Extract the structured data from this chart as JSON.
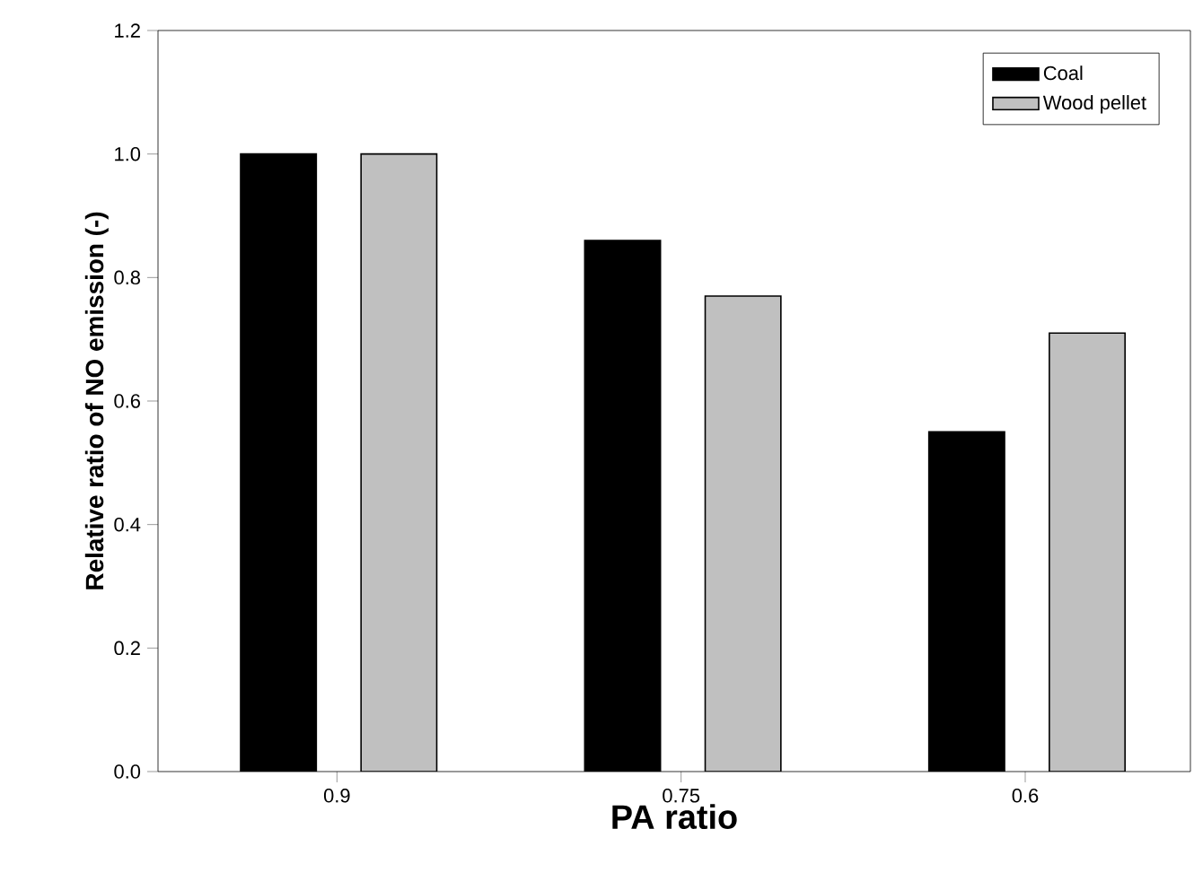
{
  "chart_data": {
    "type": "bar",
    "xlabel": "PA ratio",
    "ylabel": "Relative ratio of NO emission (-)",
    "categories": [
      "0.9",
      "0.75",
      "0.6"
    ],
    "series": [
      {
        "name": "Coal",
        "color": "#000000",
        "values": [
          1.0,
          0.86,
          0.55
        ]
      },
      {
        "name": "Wood pellet",
        "color": "#c0c0c0",
        "values": [
          1.0,
          0.77,
          0.71
        ]
      }
    ],
    "ylim": [
      0,
      1.2
    ],
    "yticks": [
      {
        "value": 0,
        "label": "0.0"
      },
      0.2,
      0.4,
      0.6,
      0.8,
      {
        "value": 1,
        "label": "1.0"
      },
      1.2
    ],
    "grid": false,
    "legend": "top right"
  }
}
